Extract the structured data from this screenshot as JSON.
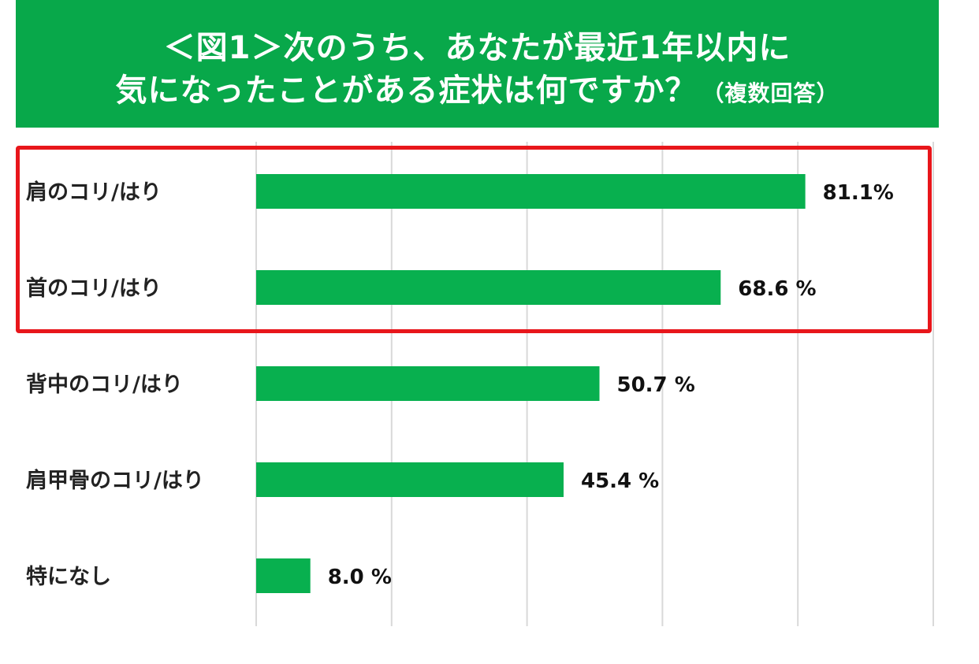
{
  "header": {
    "title_line1": "＜図1＞次のうち、あなたが最近1年以内に",
    "title_line2": "気になったことがある症状は何ですか？",
    "title_sub": "（複数回答）"
  },
  "chart_data": {
    "type": "bar",
    "orientation": "horizontal",
    "categories": [
      "肩のコリ/はり",
      "首のコリ/はり",
      "背中のコリ/はり",
      "肩甲骨のコリ/はり",
      "特になし"
    ],
    "values": [
      81.1,
      68.6,
      50.7,
      45.4,
      8.0
    ],
    "value_labels": [
      "81.1%",
      "68.6 %",
      "50.7 %",
      "45.4 %",
      "8.0 %"
    ],
    "xlim": [
      0,
      100
    ],
    "grid": true,
    "bar_color": "#08b04f",
    "highlight_color": "#e8161b",
    "highlighted_categories": [
      "肩のコリ/はり",
      "首のコリ/はり"
    ]
  }
}
